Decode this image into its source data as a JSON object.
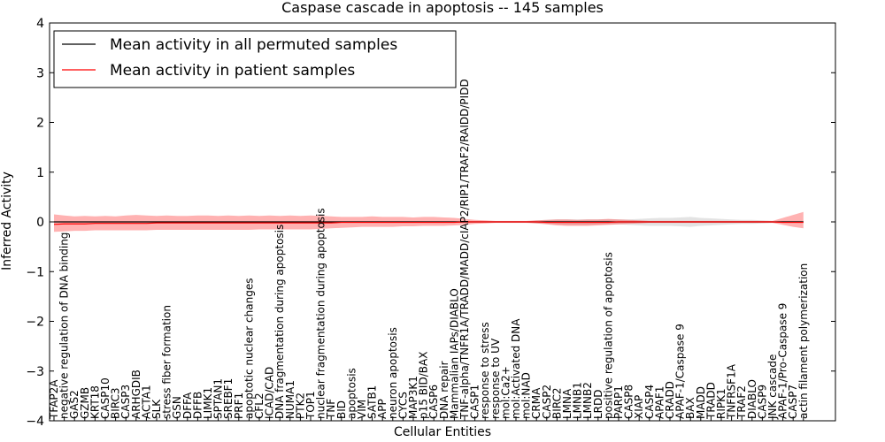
{
  "chart_data": {
    "type": "line",
    "title": "Caspase cascade in apoptosis -- 145 samples",
    "xlabel": "Cellular Entities",
    "ylabel": "Inferred Activity",
    "ylim": [
      -4,
      4
    ],
    "yticks": [
      -4,
      -3,
      -2,
      -1,
      0,
      1,
      2,
      3,
      4
    ],
    "ytick_labels": [
      "−4",
      "−3",
      "−2",
      "−1",
      "0",
      "1",
      "2",
      "3",
      "4"
    ],
    "legend_position": "top-left",
    "categories": [
      "TFAP2A",
      "negative regulation of DNA binding",
      "GAS2",
      "GZMB",
      "KRT18",
      "CASP10",
      "BIRC3",
      "CASP3",
      "ARHGDIB",
      "ACTA1",
      "SLK",
      "stress fiber formation",
      "GSN",
      "DFFA",
      "DFFB",
      "LIMK1",
      "SPTAN1",
      "SREBF1",
      "PRF1",
      "apoptotic nuclear changes",
      "CFL2",
      "ICAD/CAD",
      "DNA fragmentation during apoptosis",
      "NUMA1",
      "PTK2",
      "TOP1",
      "nuclear fragmentation during apoptosis",
      "TNF",
      "BID",
      "apoptosis",
      "VIM",
      "SATB1",
      "APP",
      "neuron apoptosis",
      "CYCS",
      "MAP3K1",
      "p15 BID/BAX",
      "CASP6",
      "DNA repair",
      "Mammalian IAPs/DIABLO",
      "TNF-alpha/TNFR1A/TRADD/MADD/cIAP2/RIP1/TRAF2/RAIDD/PIDD",
      "CASP1",
      "response to stress",
      "response to UV",
      "mol:Ca2+",
      "mol:Activated DNA",
      "mol:NAD",
      "CRMA",
      "CASP2",
      "BIRC2",
      "LMNA",
      "LMNB1",
      "LMNB2",
      "LRDD",
      "positive regulation of apoptosis",
      "PARP1",
      "CASP8",
      "XIAP",
      "CASP4",
      "APAF1",
      "CRADD",
      "APAF-1/Caspase 9",
      "BAX",
      "MADD",
      "TRADD",
      "RIPK1",
      "TNFRSF1A",
      "TRAF2",
      "DIABLO",
      "CASP9",
      "JNK cascade",
      "APAF-1/Pro-Caspase 9",
      "CASP7",
      "actin filament polymerization"
    ],
    "series": [
      {
        "name": "Mean activity in all permuted samples",
        "color": "#000000",
        "values": [
          0,
          0,
          0,
          0,
          0,
          0,
          0,
          0,
          0,
          0,
          0,
          0,
          0,
          0,
          0,
          0,
          0,
          0,
          0,
          0,
          0,
          0,
          0,
          0,
          0,
          0,
          0,
          0,
          0,
          0,
          0,
          0,
          0,
          0,
          0,
          0,
          0,
          0,
          0,
          0,
          0,
          0,
          0,
          0,
          0,
          0,
          0,
          0,
          0,
          0,
          0,
          0,
          0,
          0,
          0,
          0,
          0,
          0,
          0,
          0,
          0,
          0,
          0,
          0,
          0,
          0,
          0,
          0,
          0,
          0,
          0,
          0,
          0,
          0
        ],
        "band_lower": [
          -0.01,
          -0.01,
          -0.01,
          -0.01,
          -0.01,
          -0.01,
          -0.01,
          -0.01,
          -0.01,
          -0.01,
          -0.01,
          -0.01,
          -0.01,
          -0.01,
          -0.01,
          -0.01,
          -0.01,
          -0.01,
          -0.01,
          -0.01,
          -0.01,
          -0.01,
          -0.01,
          -0.01,
          -0.01,
          -0.01,
          -0.01,
          -0.01,
          -0.01,
          -0.01,
          -0.01,
          -0.01,
          -0.01,
          -0.01,
          -0.01,
          -0.01,
          -0.01,
          -0.01,
          -0.01,
          -0.01,
          -0.01,
          -0.01,
          -0.01,
          -0.01,
          -0.01,
          -0.01,
          -0.01,
          -0.03,
          -0.04,
          -0.05,
          -0.06,
          -0.06,
          -0.06,
          -0.05,
          -0.05,
          -0.05,
          -0.06,
          -0.07,
          -0.08,
          -0.08,
          -0.08,
          -0.09,
          -0.1,
          -0.08,
          -0.07,
          -0.06,
          -0.05,
          -0.04,
          -0.04,
          -0.03,
          -0.02,
          -0.02,
          -0.02,
          -0.02
        ],
        "band_upper": [
          0.01,
          0.01,
          0.01,
          0.01,
          0.01,
          0.01,
          0.01,
          0.01,
          0.01,
          0.01,
          0.01,
          0.01,
          0.01,
          0.01,
          0.01,
          0.01,
          0.01,
          0.01,
          0.01,
          0.01,
          0.01,
          0.01,
          0.01,
          0.01,
          0.01,
          0.01,
          0.01,
          0.01,
          0.01,
          0.01,
          0.01,
          0.01,
          0.01,
          0.01,
          0.01,
          0.01,
          0.01,
          0.01,
          0.01,
          0.01,
          0.01,
          0.01,
          0.01,
          0.01,
          0.01,
          0.01,
          0.01,
          0.03,
          0.04,
          0.05,
          0.05,
          0.05,
          0.05,
          0.05,
          0.05,
          0.05,
          0.05,
          0.06,
          0.07,
          0.08,
          0.08,
          0.09,
          0.1,
          0.08,
          0.07,
          0.06,
          0.05,
          0.04,
          0.04,
          0.03,
          0.02,
          0.02,
          0.02,
          0.02
        ]
      },
      {
        "name": "Mean activity in patient samples",
        "color": "#ff0000",
        "values": [
          -0.05,
          -0.04,
          -0.04,
          -0.04,
          -0.03,
          -0.03,
          -0.03,
          -0.03,
          -0.03,
          -0.03,
          -0.02,
          -0.02,
          -0.02,
          -0.02,
          -0.02,
          -0.02,
          -0.02,
          -0.02,
          -0.02,
          -0.02,
          -0.02,
          -0.02,
          -0.02,
          -0.02,
          -0.02,
          -0.02,
          -0.02,
          -0.02,
          -0.01,
          -0.01,
          -0.01,
          -0.01,
          -0.01,
          -0.01,
          -0.01,
          -0.01,
          -0.01,
          -0.01,
          -0.01,
          -0.01,
          0,
          0,
          0,
          0,
          0,
          0,
          0,
          0,
          -0.01,
          -0.01,
          -0.01,
          -0.01,
          -0.01,
          -0.01,
          -0.01,
          0,
          0,
          0,
          0,
          0,
          0,
          0,
          0,
          0,
          0,
          0,
          0,
          0,
          0,
          0,
          0,
          -0.01,
          -0.01,
          -0.01
        ],
        "band_lower": [
          -0.2,
          -0.19,
          -0.18,
          -0.18,
          -0.17,
          -0.17,
          -0.17,
          -0.17,
          -0.17,
          -0.17,
          -0.16,
          -0.16,
          -0.16,
          -0.16,
          -0.16,
          -0.16,
          -0.16,
          -0.16,
          -0.16,
          -0.16,
          -0.15,
          -0.15,
          -0.15,
          -0.15,
          -0.15,
          -0.15,
          -0.14,
          -0.13,
          -0.12,
          -0.11,
          -0.1,
          -0.1,
          -0.1,
          -0.1,
          -0.09,
          -0.09,
          -0.08,
          -0.08,
          -0.08,
          -0.07,
          -0.06,
          -0.04,
          -0.03,
          -0.02,
          -0.02,
          -0.02,
          -0.02,
          -0.03,
          -0.05,
          -0.07,
          -0.08,
          -0.08,
          -0.08,
          -0.07,
          -0.06,
          -0.05,
          -0.04,
          -0.03,
          -0.02,
          -0.02,
          -0.02,
          -0.02,
          -0.02,
          -0.02,
          -0.02,
          -0.02,
          -0.02,
          -0.02,
          -0.02,
          -0.02,
          -0.02,
          -0.06,
          -0.1,
          -0.13
        ],
        "band_upper": [
          0.15,
          0.13,
          0.11,
          0.12,
          0.11,
          0.12,
          0.11,
          0.13,
          0.14,
          0.13,
          0.12,
          0.13,
          0.12,
          0.12,
          0.13,
          0.13,
          0.12,
          0.13,
          0.12,
          0.13,
          0.12,
          0.13,
          0.12,
          0.13,
          0.12,
          0.13,
          0.12,
          0.11,
          0.1,
          0.1,
          0.1,
          0.11,
          0.1,
          0.1,
          0.1,
          0.09,
          0.1,
          0.1,
          0.09,
          0.08,
          0.06,
          0.04,
          0.03,
          0.02,
          0.02,
          0.02,
          0.02,
          0.03,
          0.04,
          0.05,
          0.05,
          0.04,
          0.05,
          0.05,
          0.06,
          0.05,
          0.04,
          0.03,
          0.02,
          0.02,
          0.02,
          0.02,
          0.02,
          0.02,
          0.02,
          0.02,
          0.02,
          0.02,
          0.02,
          0.02,
          0.02,
          0.08,
          0.14,
          0.2
        ]
      }
    ]
  }
}
